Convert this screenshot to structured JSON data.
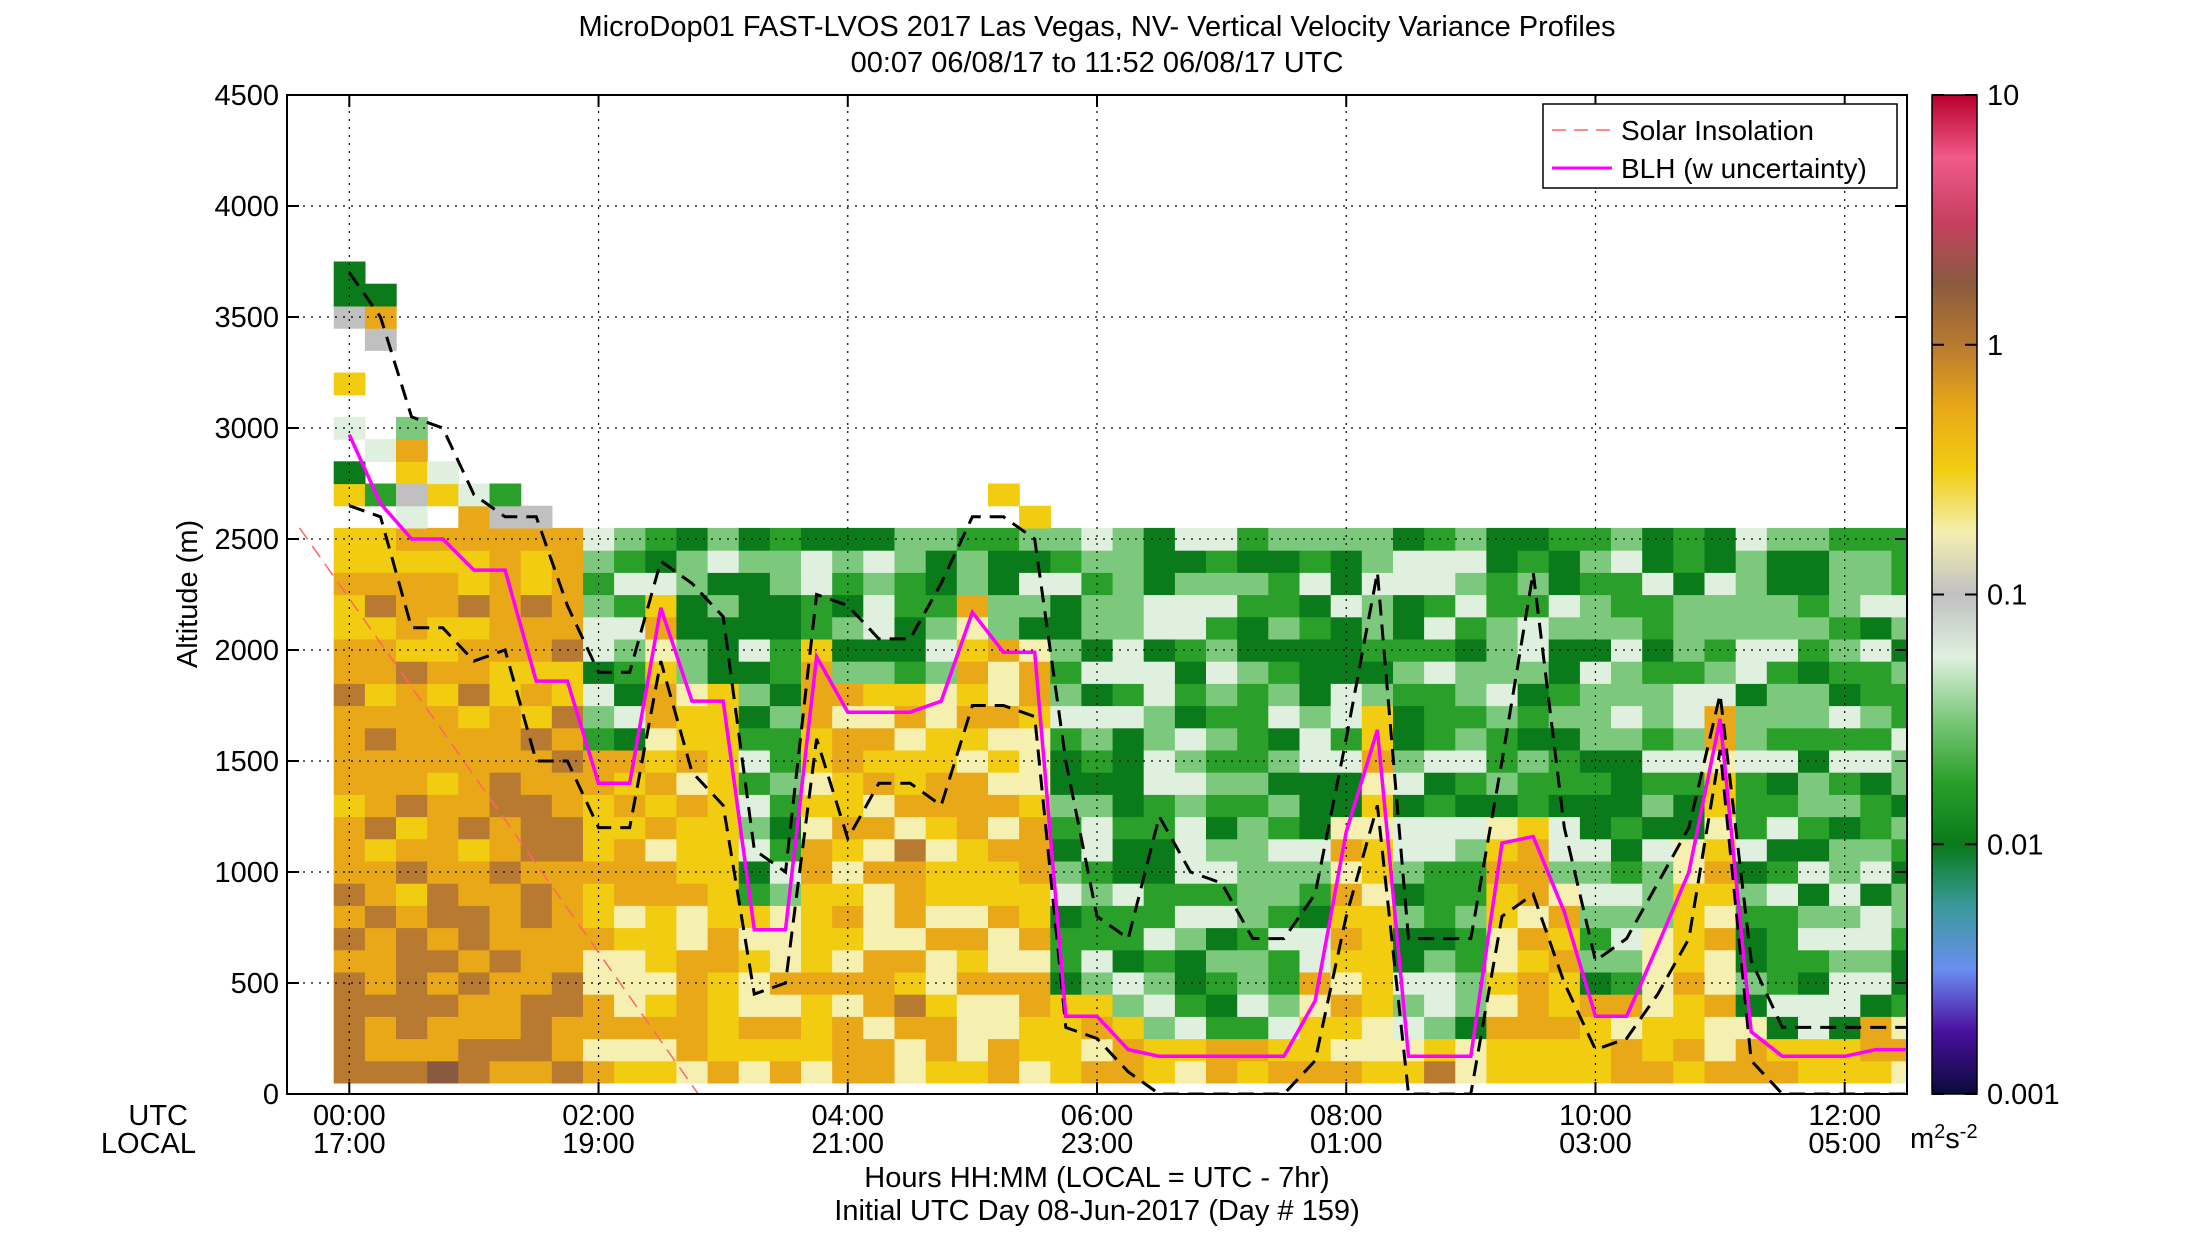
{
  "chart_data": {
    "type": "heatmap",
    "title": "MicroDop01 FAST-LVOS 2017 Las Vegas, NV- Vertical Velocity Variance Profiles",
    "subtitle": "00:07 06/08/17 to 11:52 06/08/17  UTC",
    "xlabel": "Hours HH:MM  (LOCAL = UTC - 7hr)",
    "xlabel2": "Initial UTC Day 08-Jun-2017 (Day # 159)",
    "ylabel": "Altitude (m)",
    "xlim": [
      -0.5,
      12.5
    ],
    "ylim": [
      0,
      4500
    ],
    "grid": true,
    "x_row_labels": [
      "UTC",
      "LOCAL"
    ],
    "x_ticks": [
      {
        "value": 0,
        "utc": "00:00",
        "local": "17:00"
      },
      {
        "value": 2,
        "utc": "02:00",
        "local": "19:00"
      },
      {
        "value": 4,
        "utc": "04:00",
        "local": "21:00"
      },
      {
        "value": 6,
        "utc": "06:00",
        "local": "23:00"
      },
      {
        "value": 8,
        "utc": "08:00",
        "local": "01:00"
      },
      {
        "value": 10,
        "utc": "10:00",
        "local": "03:00"
      },
      {
        "value": 12,
        "utc": "12:00",
        "local": "05:00"
      }
    ],
    "y_ticks": [
      0,
      500,
      1000,
      1500,
      2000,
      2500,
      3000,
      3500,
      4000,
      4500
    ],
    "colorbar": {
      "scale": "log",
      "range": [
        0.001,
        10
      ],
      "ticks": [
        {
          "value": 10,
          "label": "10"
        },
        {
          "value": 1,
          "label": "1"
        },
        {
          "value": 0.1,
          "label": "0.1"
        },
        {
          "value": 0.01,
          "label": "0.01"
        },
        {
          "value": 0.001,
          "label": "0.001"
        }
      ],
      "unit_base": "m",
      "unit_sup1": "2",
      "unit_mid": "s",
      "unit_sup2": "-2",
      "colors": [
        "#0a0a3a",
        "#4a10a0",
        "#6a8ef0",
        "#3a9a9a",
        "#0a7a1a",
        "#2aa02a",
        "#7cc87c",
        "#dff0df",
        "#c0c0c0",
        "#f5efb0",
        "#f2cc10",
        "#e8a818",
        "#b87a30",
        "#8a5a40",
        "#c84060",
        "#f05a8a",
        "#b8002a"
      ]
    },
    "legend": {
      "position": "top-right",
      "entries": [
        {
          "name": "Solar Insolation",
          "style": "dashed",
          "color": "#ff6666"
        },
        {
          "name": "BLH (w uncertainty)",
          "style": "solid",
          "color": "#ff00ff"
        }
      ]
    },
    "blh": {
      "x": [
        0.0,
        0.25,
        0.5,
        0.75,
        1.0,
        1.25,
        1.5,
        1.75,
        2.0,
        2.25,
        2.5,
        2.75,
        3.0,
        3.25,
        3.5,
        3.75,
        4.0,
        4.25,
        4.5,
        4.75,
        5.0,
        5.25,
        5.5,
        5.75,
        6.0,
        6.25,
        6.5,
        6.75,
        7.0,
        7.25,
        7.5,
        7.75,
        8.0,
        8.25,
        8.5,
        8.75,
        9.0,
        9.25,
        9.5,
        9.75,
        10.0,
        10.25,
        10.5,
        10.75,
        11.0,
        11.25,
        11.5,
        11.75,
        12.0,
        12.25,
        12.5
      ],
      "y": [
        2970,
        2660,
        2500,
        2500,
        2360,
        2360,
        1860,
        1860,
        1400,
        1400,
        2190,
        1770,
        1770,
        740,
        740,
        1970,
        1720,
        1720,
        1720,
        1770,
        2170,
        1990,
        1990,
        350,
        350,
        200,
        170,
        170,
        170,
        170,
        170,
        420,
        1180,
        1640,
        170,
        170,
        170,
        1130,
        1160,
        820,
        350,
        350,
        670,
        1000,
        1690,
        280,
        170,
        170,
        170,
        200,
        200
      ]
    },
    "blh_upper": {
      "x": [
        0.0,
        0.25,
        0.5,
        0.75,
        1.0,
        1.25,
        1.5,
        1.75,
        2.0,
        2.25,
        2.5,
        2.75,
        3.0,
        3.25,
        3.5,
        3.75,
        4.0,
        4.25,
        4.5,
        4.75,
        5.0,
        5.25,
        5.5,
        5.75,
        6.0,
        6.25,
        6.5,
        6.75,
        7.0,
        7.25,
        7.5,
        7.75,
        8.0,
        8.25,
        8.5,
        8.75,
        9.0,
        9.25,
        9.5,
        9.75,
        10.0,
        10.25,
        10.5,
        10.75,
        11.0,
        11.25,
        11.5,
        11.75,
        12.0,
        12.25,
        12.5
      ],
      "y": [
        3700,
        3500,
        3050,
        3000,
        2700,
        2600,
        2600,
        2200,
        1900,
        1900,
        2400,
        2300,
        2150,
        1100,
        1000,
        2250,
        2200,
        2050,
        2050,
        2300,
        2600,
        2600,
        2500,
        1500,
        800,
        700,
        1250,
        1000,
        950,
        700,
        700,
        900,
        1600,
        2350,
        700,
        700,
        700,
        1500,
        2350,
        1200,
        600,
        700,
        950,
        1200,
        1800,
        600,
        300,
        300,
        300,
        300,
        300
      ]
    },
    "blh_lower": {
      "x": [
        0.0,
        0.25,
        0.5,
        0.75,
        1.0,
        1.25,
        1.5,
        1.75,
        2.0,
        2.25,
        2.5,
        2.75,
        3.0,
        3.25,
        3.5,
        3.75,
        4.0,
        4.25,
        4.5,
        4.75,
        5.0,
        5.25,
        5.5,
        5.75,
        6.0,
        6.25,
        6.5,
        6.75,
        7.0,
        7.25,
        7.5,
        7.75,
        8.0,
        8.25,
        8.5,
        8.75,
        9.0,
        9.25,
        9.5,
        9.75,
        10.0,
        10.25,
        10.5,
        10.75,
        11.0,
        11.25,
        11.5,
        11.75,
        12.0,
        12.25,
        12.5
      ],
      "y": [
        2650,
        2600,
        2100,
        2100,
        1950,
        2000,
        1500,
        1500,
        1200,
        1200,
        1950,
        1450,
        1300,
        450,
        500,
        1600,
        1150,
        1400,
        1400,
        1300,
        1750,
        1750,
        1700,
        300,
        250,
        100,
        0,
        0,
        0,
        0,
        0,
        150,
        800,
        1300,
        0,
        0,
        0,
        800,
        900,
        500,
        200,
        250,
        450,
        700,
        1550,
        150,
        0,
        0,
        0,
        0,
        0
      ]
    },
    "solar_insolation": {
      "x": [
        -0.4,
        2.8
      ],
      "y": [
        2550,
        0
      ]
    }
  }
}
